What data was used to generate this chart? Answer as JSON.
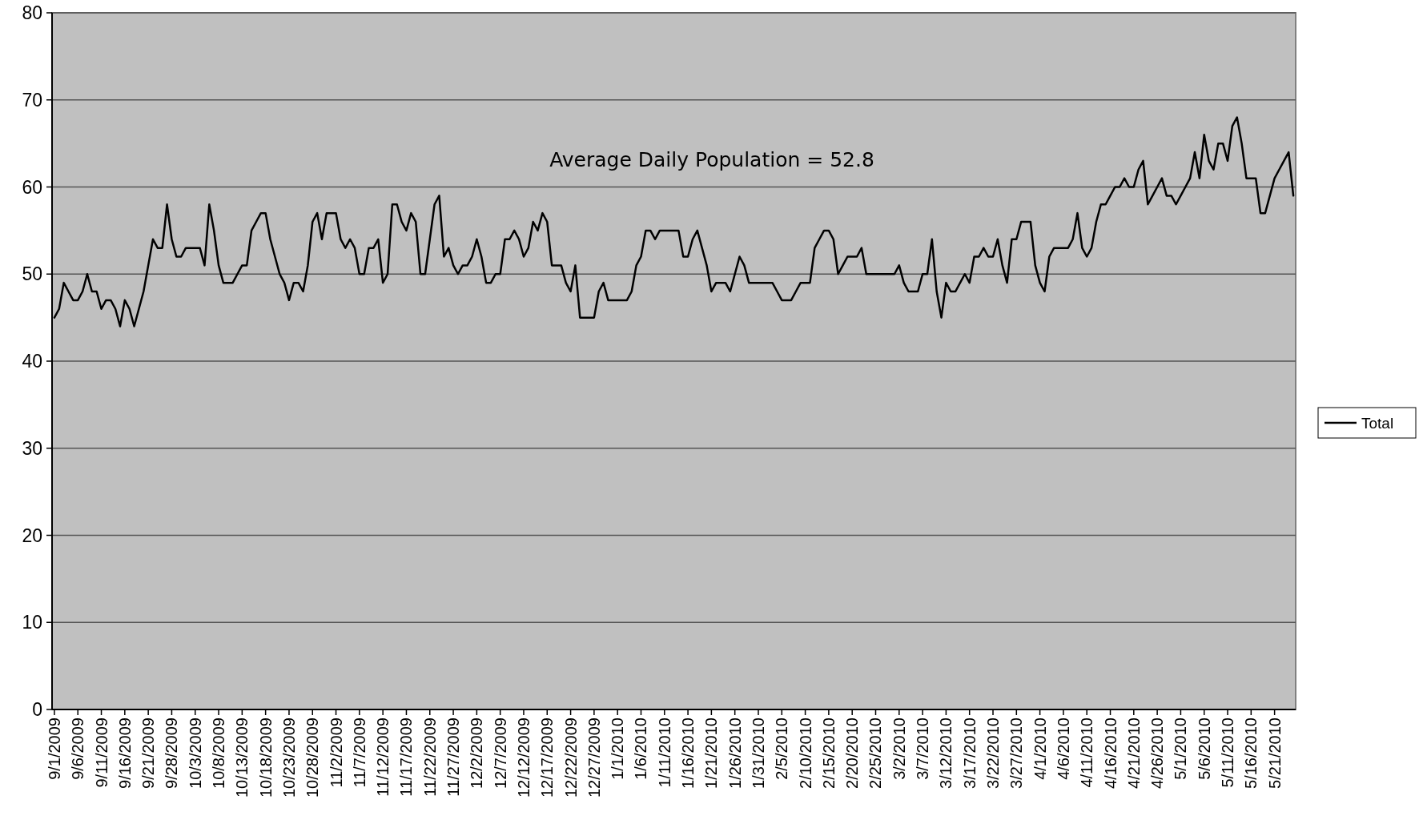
{
  "chart_data": {
    "type": "line",
    "legend": "right",
    "grid": "y",
    "ylim": [
      0,
      80
    ],
    "yticks": [
      0,
      10,
      20,
      30,
      40,
      50,
      60,
      70,
      80
    ],
    "categories": [
      "9/1/2009",
      null,
      null,
      null,
      null,
      "9/6/2009",
      null,
      null,
      null,
      null,
      "9/11/2009",
      null,
      null,
      null,
      null,
      "9/16/2009",
      null,
      null,
      null,
      null,
      "9/21/2009",
      null,
      null,
      null,
      null,
      "9/28/2009",
      null,
      null,
      null,
      null,
      "10/3/2009",
      null,
      null,
      null,
      null,
      "10/8/2009",
      null,
      null,
      null,
      null,
      "10/13/2009",
      null,
      null,
      null,
      null,
      "10/18/2009",
      null,
      null,
      null,
      null,
      "10/23/2009",
      null,
      null,
      null,
      null,
      "10/28/2009",
      null,
      null,
      null,
      null,
      "11/2/2009",
      null,
      null,
      null,
      null,
      "11/7/2009",
      null,
      null,
      null,
      null,
      "11/12/2009",
      null,
      null,
      null,
      null,
      "11/17/2009",
      null,
      null,
      null,
      null,
      "11/22/2009",
      null,
      null,
      null,
      null,
      "11/27/2009",
      null,
      null,
      null,
      null,
      "12/2/2009",
      null,
      null,
      null,
      null,
      "12/7/2009",
      null,
      null,
      null,
      null,
      "12/12/2009",
      null,
      null,
      null,
      null,
      "12/17/2009",
      null,
      null,
      null,
      null,
      "12/22/2009",
      null,
      null,
      null,
      null,
      "12/27/2009",
      null,
      null,
      null,
      null,
      "1/1/2010",
      null,
      null,
      null,
      null,
      "1/6/2010",
      null,
      null,
      null,
      null,
      "1/11/2010",
      null,
      null,
      null,
      null,
      "1/16/2010",
      null,
      null,
      null,
      null,
      "1/21/2010",
      null,
      null,
      null,
      null,
      "1/26/2010",
      null,
      null,
      null,
      null,
      "1/31/2010",
      null,
      null,
      null,
      null,
      "2/5/2010",
      null,
      null,
      null,
      null,
      "2/10/2010",
      null,
      null,
      null,
      null,
      "2/15/2010",
      null,
      null,
      null,
      null,
      "2/20/2010",
      null,
      null,
      null,
      null,
      "2/25/2010",
      null,
      null,
      null,
      null,
      "3/2/2010",
      null,
      null,
      null,
      null,
      "3/7/2010",
      null,
      null,
      null,
      null,
      "3/12/2010",
      null,
      null,
      null,
      null,
      "3/17/2010",
      null,
      null,
      null,
      null,
      "3/22/2010",
      null,
      null,
      null,
      null,
      "3/27/2010",
      null,
      null,
      null,
      null,
      "4/1/2010",
      null,
      null,
      null,
      null,
      "4/6/2010",
      null,
      null,
      null,
      null,
      "4/11/2010",
      null,
      null,
      null,
      null,
      "4/16/2010",
      null,
      null,
      null,
      null,
      "4/21/2010",
      null,
      null,
      null,
      null,
      "4/26/2010",
      null,
      null,
      null,
      null,
      "5/1/2010",
      null,
      null,
      null,
      null,
      "5/6/2010",
      null,
      null,
      null,
      null,
      "5/11/2010",
      null,
      null,
      null,
      null,
      "5/16/2010",
      null,
      null,
      null,
      null,
      "5/21/2010",
      null,
      null,
      null,
      null
    ],
    "annotations": [
      "Average Daily Population = 52.8"
    ],
    "series": [
      {
        "name": "Total",
        "color": "#000000",
        "values": [
          45,
          46,
          49,
          48,
          47,
          47,
          48,
          50,
          48,
          48,
          46,
          47,
          47,
          46,
          44,
          47,
          46,
          44,
          46,
          48,
          51,
          54,
          53,
          53,
          58,
          54,
          52,
          52,
          53,
          53,
          53,
          53,
          51,
          58,
          55,
          51,
          49,
          49,
          49,
          50,
          51,
          51,
          55,
          56,
          57,
          57,
          54,
          52,
          50,
          49,
          47,
          49,
          49,
          48,
          51,
          56,
          57,
          54,
          57,
          57,
          57,
          54,
          53,
          54,
          53,
          50,
          50,
          53,
          53,
          54,
          49,
          50,
          58,
          58,
          56,
          55,
          57,
          56,
          50,
          50,
          54,
          58,
          59,
          52,
          53,
          51,
          50,
          51,
          51,
          52,
          54,
          52,
          49,
          49,
          50,
          50,
          54,
          54,
          55,
          54,
          52,
          53,
          56,
          55,
          57,
          56,
          51,
          51,
          51,
          49,
          48,
          51,
          45,
          45,
          45,
          45,
          48,
          49,
          47,
          47,
          47,
          47,
          47,
          48,
          51,
          52,
          55,
          55,
          54,
          55,
          55,
          55,
          55,
          55,
          52,
          52,
          54,
          55,
          53,
          51,
          48,
          49,
          49,
          49,
          48,
          50,
          52,
          51,
          49,
          49,
          49,
          49,
          49,
          49,
          48,
          47,
          47,
          47,
          48,
          49,
          49,
          49,
          53,
          54,
          55,
          55,
          54,
          50,
          51,
          52,
          52,
          52,
          53,
          50,
          50,
          50,
          50,
          50,
          50,
          50,
          51,
          49,
          48,
          48,
          48,
          50,
          50,
          54,
          48,
          45,
          49,
          48,
          48,
          49,
          50,
          49,
          52,
          52,
          53,
          52,
          52,
          54,
          51,
          49,
          54,
          54,
          56,
          56,
          56,
          51,
          49,
          48,
          52,
          53,
          53,
          53,
          53,
          54,
          57,
          53,
          52,
          53,
          56,
          58,
          58,
          59,
          60,
          60,
          61,
          60,
          60,
          62,
          63,
          58,
          59,
          60,
          61,
          59,
          59,
          58,
          59,
          60,
          61,
          64,
          61,
          66,
          63,
          62,
          65,
          65,
          63,
          67,
          68,
          65,
          61,
          61,
          61,
          57,
          57,
          59,
          61,
          62,
          63,
          64,
          59
        ]
      }
    ]
  }
}
